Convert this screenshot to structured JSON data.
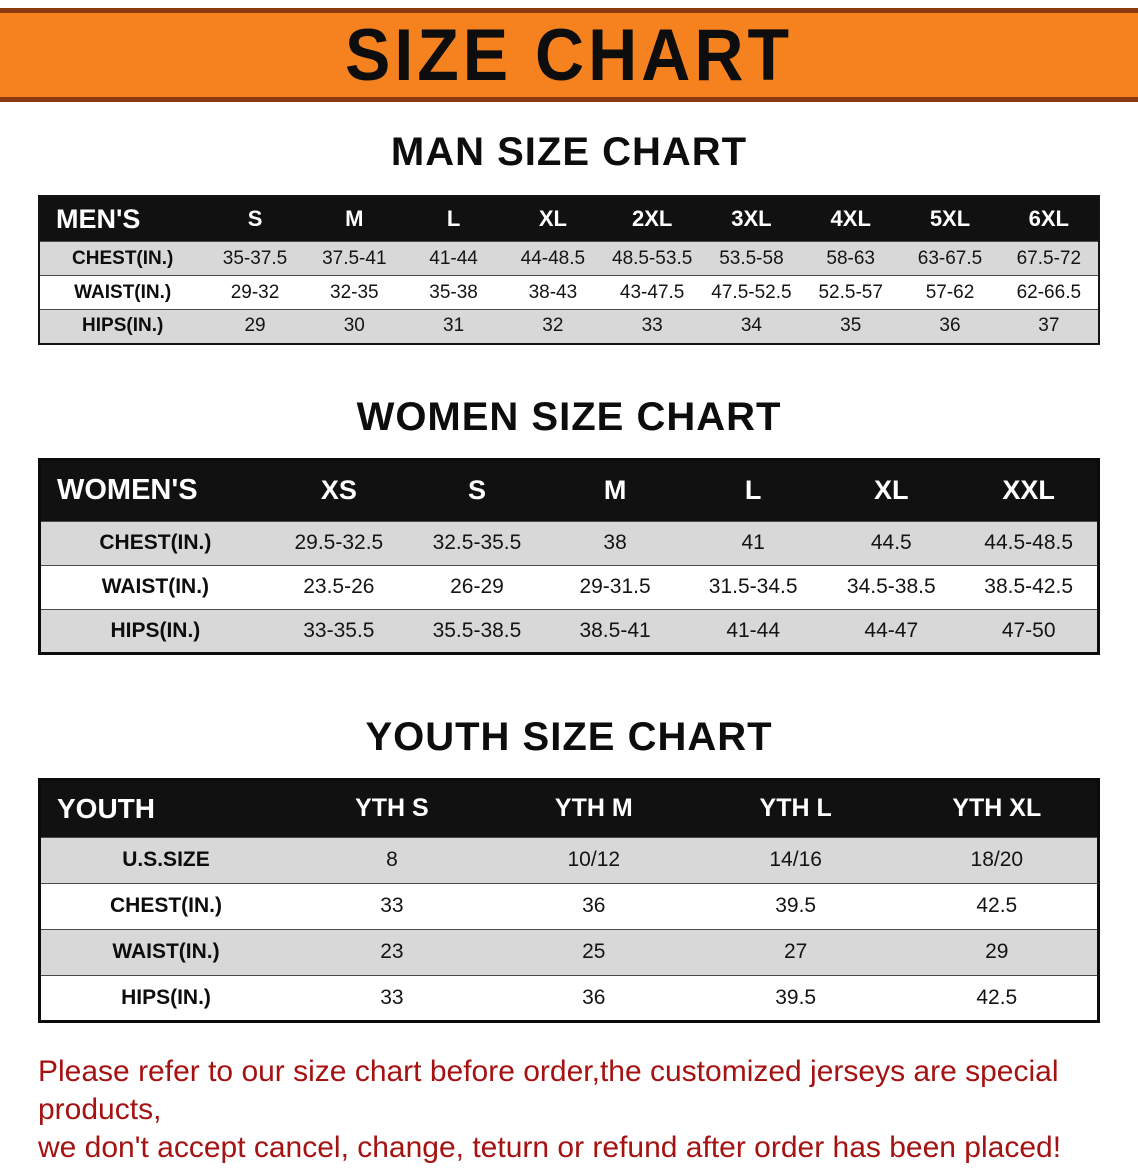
{
  "colors": {
    "banner_orange": "#F5821F",
    "banner_edge": "#8A3A0E",
    "table_header_black": "#111111",
    "stripe_gray": "#D8D8D8",
    "footer_red": "#A51212"
  },
  "banner": {
    "title": "SIZE CHART"
  },
  "sections": [
    {
      "heading": "MAN SIZE CHART",
      "table": {
        "header_label": "MEN'S",
        "columns": [
          "S",
          "M",
          "L",
          "XL",
          "2XL",
          "3XL",
          "4XL",
          "5XL",
          "6XL"
        ],
        "rows": [
          {
            "label": "CHEST(IN.)",
            "values": [
              "35-37.5",
              "37.5-41",
              "41-44",
              "44-48.5",
              "48.5-53.5",
              "53.5-58",
              "58-63",
              "63-67.5",
              "67.5-72"
            ]
          },
          {
            "label": "WAIST(IN.)",
            "values": [
              "29-32",
              "32-35",
              "35-38",
              "38-43",
              "43-47.5",
              "47.5-52.5",
              "52.5-57",
              "57-62",
              "62-66.5"
            ]
          },
          {
            "label": "HIPS(IN.)",
            "values": [
              "29",
              "30",
              "31",
              "32",
              "33",
              "34",
              "35",
              "36",
              "37"
            ]
          }
        ]
      }
    },
    {
      "heading": "WOMEN SIZE CHART",
      "table": {
        "header_label": "WOMEN'S",
        "columns": [
          "XS",
          "S",
          "M",
          "L",
          "XL",
          "XXL"
        ],
        "rows": [
          {
            "label": "CHEST(IN.)",
            "values": [
              "29.5-32.5",
              "32.5-35.5",
              "38",
              "41",
              "44.5",
              "44.5-48.5"
            ]
          },
          {
            "label": "WAIST(IN.)",
            "values": [
              "23.5-26",
              "26-29",
              "29-31.5",
              "31.5-34.5",
              "34.5-38.5",
              "38.5-42.5"
            ]
          },
          {
            "label": "HIPS(IN.)",
            "values": [
              "33-35.5",
              "35.5-38.5",
              "38.5-41",
              "41-44",
              "44-47",
              "47-50"
            ]
          }
        ]
      }
    },
    {
      "heading": "YOUTH SIZE CHART",
      "table": {
        "header_label": "YOUTH",
        "columns": [
          "YTH S",
          "YTH M",
          "YTH L",
          "YTH XL"
        ],
        "rows": [
          {
            "label": "U.S.SIZE",
            "values": [
              "8",
              "10/12",
              "14/16",
              "18/20"
            ]
          },
          {
            "label": "CHEST(IN.)",
            "values": [
              "33",
              "36",
              "39.5",
              "42.5"
            ]
          },
          {
            "label": "WAIST(IN.)",
            "values": [
              "23",
              "25",
              "27",
              "29"
            ]
          },
          {
            "label": "HIPS(IN.)",
            "values": [
              "33",
              "36",
              "39.5",
              "42.5"
            ]
          }
        ]
      }
    }
  ],
  "footer": {
    "line1": "Please refer to our size chart before order,the customized jerseys are special products,",
    "line2": "we don't accept cancel, change, teturn or refund after order has been placed!"
  }
}
